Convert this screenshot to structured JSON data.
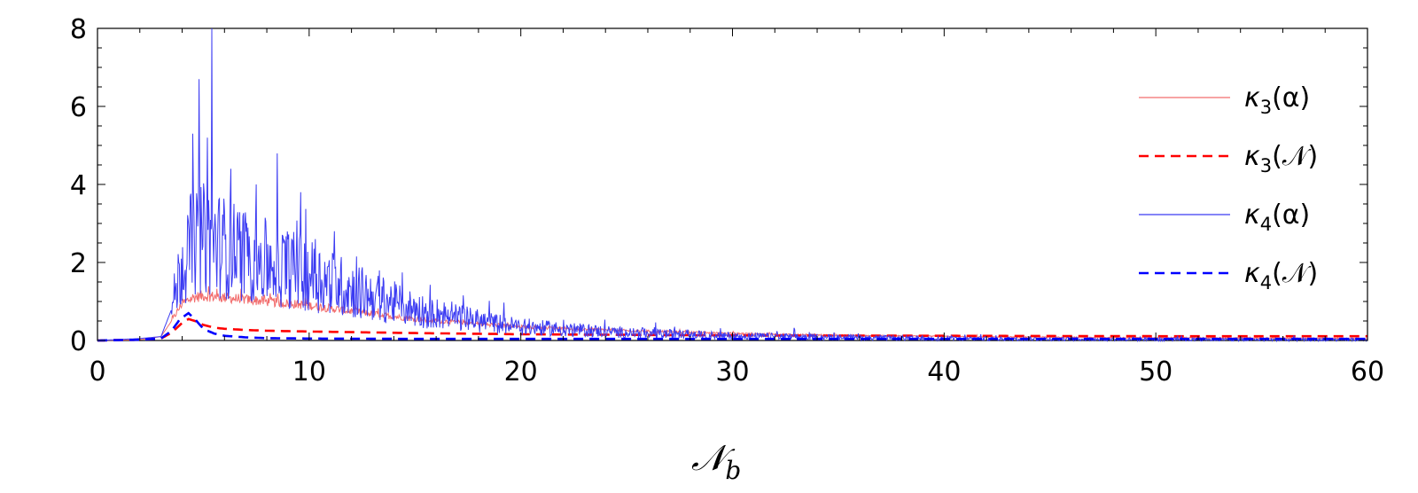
{
  "chart_data": {
    "type": "line",
    "title": "",
    "xlabel": "𝒩_b",
    "xlabel_main": "𝒩",
    "xlabel_sub": "b",
    "ylabel": "",
    "xlim": [
      0,
      60
    ],
    "ylim": [
      0,
      8
    ],
    "x_ticks": [
      "0",
      "10",
      "20",
      "30",
      "40",
      "50",
      "60"
    ],
    "y_ticks": [
      "0",
      "2",
      "4",
      "6",
      "8"
    ],
    "grid": false,
    "legend_position": "right",
    "series": [
      {
        "name": "κ3(α)",
        "label_main": "κ",
        "label_sub": "3",
        "label_arg": "(α)",
        "color": "#f26d6d",
        "style": "solid-thin",
        "noise": 0.12,
        "x": [
          0,
          2,
          3,
          3.5,
          4,
          4.5,
          5,
          6,
          7,
          8,
          10,
          12,
          15,
          20,
          25,
          30,
          35,
          40,
          45,
          50,
          55,
          60
        ],
        "y": [
          0,
          0.02,
          0.1,
          0.5,
          0.95,
          1.1,
          1.15,
          1.1,
          1.05,
          1.0,
          0.9,
          0.75,
          0.55,
          0.35,
          0.25,
          0.18,
          0.13,
          0.1,
          0.08,
          0.07,
          0.06,
          0.05
        ]
      },
      {
        "name": "κ3(𝒩)",
        "label_main": "κ",
        "label_sub": "3",
        "label_arg": "(𝒩)",
        "color": "#ff0000",
        "style": "dashed",
        "noise": 0,
        "x": [
          0,
          2,
          3,
          3.5,
          4,
          4.3,
          4.6,
          5,
          5.5,
          6,
          7,
          8,
          10,
          15,
          20,
          30,
          40,
          50,
          60
        ],
        "y": [
          0,
          0.02,
          0.05,
          0.2,
          0.45,
          0.55,
          0.5,
          0.4,
          0.33,
          0.3,
          0.27,
          0.25,
          0.23,
          0.19,
          0.16,
          0.13,
          0.12,
          0.11,
          0.11
        ]
      },
      {
        "name": "κ4(α)",
        "label_main": "κ",
        "label_sub": "4",
        "label_arg": "(α)",
        "color": "#3b3bf2",
        "style": "solid-thin",
        "noise": 0.55,
        "spikes": [
          [
            4.5,
            5.3
          ],
          [
            4.8,
            6.7
          ],
          [
            5.2,
            5.2
          ],
          [
            5.4,
            8.0
          ],
          [
            6.3,
            4.4
          ],
          [
            7.5,
            4.0
          ],
          [
            9.6,
            3.8
          ],
          [
            10.3,
            2.6
          ],
          [
            11.2,
            2.8
          ]
        ],
        "x": [
          0,
          2,
          3,
          3.5,
          4,
          4.5,
          5,
          6,
          7,
          8,
          10,
          12,
          15,
          18,
          20,
          25,
          30,
          35,
          40,
          45,
          50,
          55,
          60
        ],
        "y": [
          0,
          0.05,
          0.1,
          0.8,
          2.0,
          2.5,
          2.6,
          2.4,
          2.2,
          2.0,
          1.7,
          1.3,
          0.8,
          0.5,
          0.35,
          0.2,
          0.12,
          0.08,
          0.05,
          0.04,
          0.03,
          0.02,
          0.02
        ]
      },
      {
        "name": "κ4(𝒩)",
        "label_main": "κ",
        "label_sub": "4",
        "label_arg": "(𝒩)",
        "color": "#0000ff",
        "style": "dashed",
        "noise": 0,
        "x": [
          0,
          2,
          3,
          3.5,
          3.9,
          4.3,
          4.6,
          5,
          5.5,
          6,
          7,
          8,
          10,
          15,
          20,
          30,
          40,
          50,
          60
        ],
        "y": [
          0,
          0.02,
          0.05,
          0.25,
          0.55,
          0.7,
          0.55,
          0.3,
          0.18,
          0.12,
          0.08,
          0.06,
          0.05,
          0.04,
          0.04,
          0.04,
          0.04,
          0.04,
          0.04
        ]
      }
    ]
  }
}
